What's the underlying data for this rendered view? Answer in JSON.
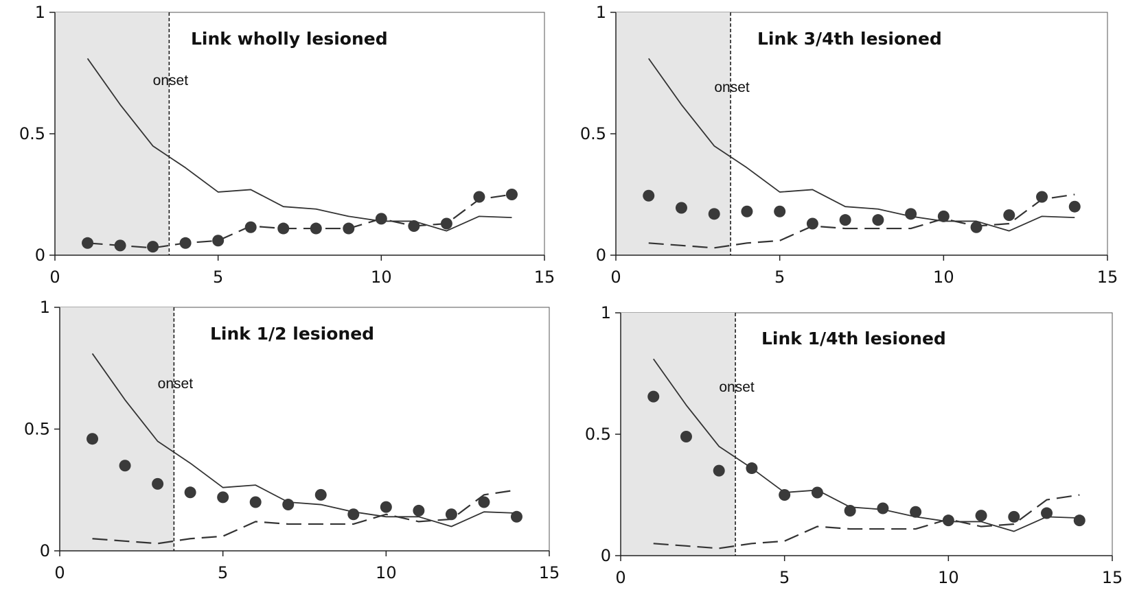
{
  "figure": {
    "panels_label": "four-panel line and scatter figure"
  },
  "chart_data": [
    {
      "type": "line",
      "title": "Link wholly lesioned",
      "annotation": "onset",
      "onset_x": 3.5,
      "shaded_x_range": [
        0,
        3.5
      ],
      "xlim": [
        0,
        15
      ],
      "ylim": [
        0,
        1
      ],
      "xticks": [
        0,
        5,
        10,
        15
      ],
      "yticks": [
        0,
        0.5,
        1
      ],
      "xtick_labels": [
        "0",
        "5",
        "10",
        "15"
      ],
      "ytick_labels": [
        "0",
        "0.5",
        "1"
      ],
      "grid": false,
      "x": [
        1,
        2,
        3,
        4,
        5,
        6,
        7,
        8,
        9,
        10,
        11,
        12,
        13,
        14
      ],
      "series": [
        {
          "style": "solid",
          "values": [
            0.81,
            0.62,
            0.45,
            0.36,
            0.26,
            0.27,
            0.2,
            0.19,
            0.16,
            0.14,
            0.14,
            0.1,
            0.16,
            0.155
          ]
        },
        {
          "style": "dashed",
          "values": [
            0.05,
            0.04,
            0.03,
            0.05,
            0.06,
            0.12,
            0.11,
            0.11,
            0.11,
            0.15,
            0.12,
            0.13,
            0.23,
            0.25
          ]
        },
        {
          "style": "markers",
          "values": [
            0.05,
            0.04,
            0.035,
            0.05,
            0.06,
            0.115,
            0.11,
            0.11,
            0.11,
            0.15,
            0.12,
            0.13,
            0.24,
            0.25
          ]
        }
      ]
    },
    {
      "type": "line",
      "title": "Link 3/4th lesioned",
      "annotation": "onset",
      "onset_x": 3.5,
      "shaded_x_range": [
        0,
        3.5
      ],
      "xlim": [
        0,
        15
      ],
      "ylim": [
        0,
        1
      ],
      "xticks": [
        0,
        5,
        10,
        15
      ],
      "yticks": [
        0,
        0.5,
        1
      ],
      "xtick_labels": [
        "0",
        "5",
        "10",
        "15"
      ],
      "ytick_labels": [
        "0",
        "0.5",
        "1"
      ],
      "grid": false,
      "x": [
        1,
        2,
        3,
        4,
        5,
        6,
        7,
        8,
        9,
        10,
        11,
        12,
        13,
        14
      ],
      "series": [
        {
          "style": "solid",
          "values": [
            0.81,
            0.62,
            0.45,
            0.36,
            0.26,
            0.27,
            0.2,
            0.19,
            0.16,
            0.14,
            0.14,
            0.1,
            0.16,
            0.155
          ]
        },
        {
          "style": "dashed",
          "values": [
            0.05,
            0.04,
            0.03,
            0.05,
            0.06,
            0.12,
            0.11,
            0.11,
            0.11,
            0.15,
            0.12,
            0.13,
            0.23,
            0.25
          ]
        },
        {
          "style": "markers",
          "values": [
            0.245,
            0.195,
            0.17,
            0.18,
            0.18,
            0.13,
            0.145,
            0.145,
            0.17,
            0.16,
            0.115,
            0.165,
            0.24,
            0.2
          ]
        }
      ]
    },
    {
      "type": "line",
      "title": "Link 1/2 lesioned",
      "annotation": "onset",
      "onset_x": 3.5,
      "shaded_x_range": [
        0,
        3.5
      ],
      "xlim": [
        0,
        15
      ],
      "ylim": [
        0,
        1
      ],
      "xticks": [
        0,
        5,
        10,
        15
      ],
      "yticks": [
        0,
        0.5,
        1
      ],
      "xtick_labels": [
        "0",
        "5",
        "10",
        "15"
      ],
      "ytick_labels": [
        "0",
        "0.5",
        "1"
      ],
      "grid": false,
      "x": [
        1,
        2,
        3,
        4,
        5,
        6,
        7,
        8,
        9,
        10,
        11,
        12,
        13,
        14
      ],
      "series": [
        {
          "style": "solid",
          "values": [
            0.81,
            0.62,
            0.45,
            0.36,
            0.26,
            0.27,
            0.2,
            0.19,
            0.16,
            0.14,
            0.14,
            0.1,
            0.16,
            0.155
          ]
        },
        {
          "style": "dashed",
          "values": [
            0.05,
            0.04,
            0.03,
            0.05,
            0.06,
            0.12,
            0.11,
            0.11,
            0.11,
            0.15,
            0.12,
            0.13,
            0.23,
            0.25
          ]
        },
        {
          "style": "markers",
          "values": [
            0.46,
            0.35,
            0.275,
            0.24,
            0.22,
            0.2,
            0.19,
            0.23,
            0.15,
            0.18,
            0.165,
            0.15,
            0.2,
            0.14
          ]
        }
      ]
    },
    {
      "type": "line",
      "title": "Link 1/4th lesioned",
      "annotation": "onset",
      "onset_x": 3.5,
      "shaded_x_range": [
        0,
        3.5
      ],
      "xlim": [
        0,
        15
      ],
      "ylim": [
        0,
        1
      ],
      "xticks": [
        0,
        5,
        10,
        15
      ],
      "yticks": [
        0,
        0.5,
        1
      ],
      "xtick_labels": [
        "0",
        "5",
        "10",
        "15"
      ],
      "ytick_labels": [
        "0",
        "0.5",
        "1"
      ],
      "grid": false,
      "x": [
        1,
        2,
        3,
        4,
        5,
        6,
        7,
        8,
        9,
        10,
        11,
        12,
        13,
        14
      ],
      "series": [
        {
          "style": "solid",
          "values": [
            0.81,
            0.62,
            0.45,
            0.36,
            0.26,
            0.27,
            0.2,
            0.19,
            0.16,
            0.14,
            0.14,
            0.1,
            0.16,
            0.155
          ]
        },
        {
          "style": "dashed",
          "values": [
            0.05,
            0.04,
            0.03,
            0.05,
            0.06,
            0.12,
            0.11,
            0.11,
            0.11,
            0.15,
            0.12,
            0.13,
            0.23,
            0.25
          ]
        },
        {
          "style": "markers",
          "values": [
            0.655,
            0.49,
            0.35,
            0.36,
            0.25,
            0.26,
            0.185,
            0.195,
            0.18,
            0.145,
            0.165,
            0.16,
            0.175,
            0.145
          ]
        }
      ]
    }
  ],
  "colors": {
    "line": "#333333",
    "marker": "#3a3a3a",
    "shade": "#e6e6e6",
    "axis": "#222222",
    "frame": "#555555"
  }
}
